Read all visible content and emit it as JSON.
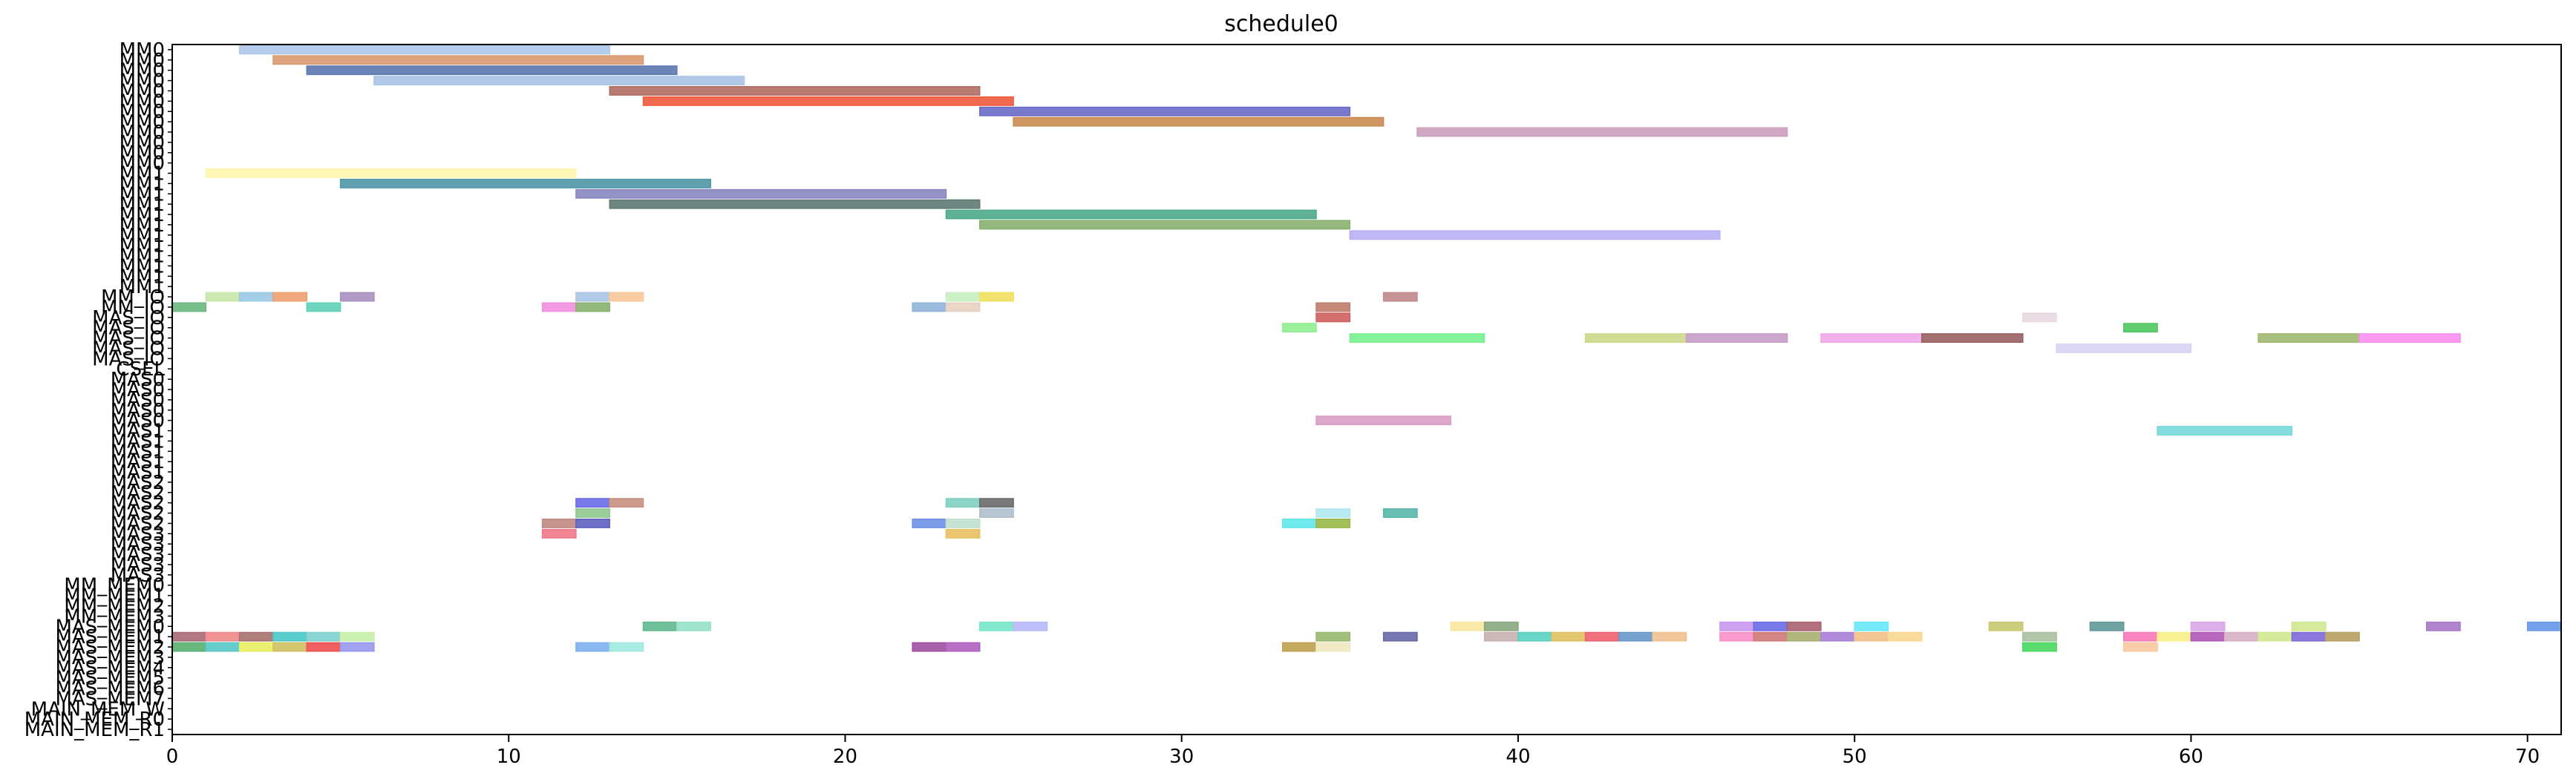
{
  "chart_data": {
    "type": "gantt",
    "title": "schedule0",
    "xlabel": "",
    "ylabel": "",
    "xlim": [
      0,
      71
    ],
    "x_ticks": [
      0,
      10,
      20,
      30,
      40,
      50,
      60,
      70
    ],
    "grid": false,
    "rows": [
      "MM0",
      "MM0",
      "MM0",
      "MM0",
      "MM0",
      "MM0",
      "MM0",
      "MM0",
      "MM0",
      "MM0",
      "MM0",
      "MM0",
      "MM1",
      "MM1",
      "MM1",
      "MM1",
      "MM1",
      "MM1",
      "MM1",
      "MM1",
      "MM1",
      "MM1",
      "MM1",
      "MM1",
      "MM_IO",
      "MM_IO",
      "MAS_IO",
      "MAS_IO",
      "MAS_IO",
      "MAS_IO",
      "MAS_IO",
      "CSEL",
      "MAS0",
      "MAS0",
      "MAS0",
      "MAS0",
      "MAS0",
      "MAS1",
      "MAS1",
      "MAS1",
      "MAS1",
      "MAS1",
      "MAS2",
      "MAS2",
      "MAS2",
      "MAS2",
      "MAS2",
      "MAS3",
      "MAS3",
      "MAS3",
      "MAS3",
      "MAS3",
      "MM_MEM0",
      "MM_MEM1",
      "MM_MEM2",
      "MM_MEM3",
      "MAS_MEM0",
      "MAS_MEM1",
      "MAS_MEM2",
      "MAS_MEM3",
      "MAS_MEM4",
      "MAS_MEM5",
      "MAS_MEM6",
      "MAS_MEM7",
      "MAIN_MEM_W",
      "MAIN_MEM_R0",
      "MAIN_MEM_R1"
    ],
    "tasks": [
      {
        "row": 0,
        "start": 2,
        "end": 13,
        "color": "#aec7e8"
      },
      {
        "row": 1,
        "start": 3,
        "end": 14,
        "color": "#d9996f"
      },
      {
        "row": 2,
        "start": 4,
        "end": 15,
        "color": "#5b78b0"
      },
      {
        "row": 3,
        "start": 6,
        "end": 17,
        "color": "#aac4e6"
      },
      {
        "row": 4,
        "start": 13,
        "end": 24,
        "color": "#b06e62"
      },
      {
        "row": 5,
        "start": 14,
        "end": 25,
        "color": "#f05a3c"
      },
      {
        "row": 6,
        "start": 24,
        "end": 35,
        "color": "#6a6ac8"
      },
      {
        "row": 7,
        "start": 25,
        "end": 36,
        "color": "#c98b52"
      },
      {
        "row": 8,
        "start": 37,
        "end": 48,
        "color": "#caa0bd"
      },
      {
        "row": 12,
        "start": 1,
        "end": 12,
        "color": "#fff6b0"
      },
      {
        "row": 13,
        "start": 5,
        "end": 16,
        "color": "#4f96a6"
      },
      {
        "row": 14,
        "start": 12,
        "end": 23,
        "color": "#8a86c2"
      },
      {
        "row": 15,
        "start": 13,
        "end": 24,
        "color": "#5e7a72"
      },
      {
        "row": 16,
        "start": 23,
        "end": 34,
        "color": "#4eaa8a"
      },
      {
        "row": 17,
        "start": 24,
        "end": 35,
        "color": "#88b070"
      },
      {
        "row": 18,
        "start": 35,
        "end": 46,
        "color": "#b8b0f4"
      },
      {
        "row": 24,
        "start": 1,
        "end": 2,
        "color": "#c8e6a8"
      },
      {
        "row": 24,
        "start": 2,
        "end": 3,
        "color": "#9ac8e6"
      },
      {
        "row": 24,
        "start": 3,
        "end": 4,
        "color": "#eea070"
      },
      {
        "row": 24,
        "start": 5,
        "end": 6,
        "color": "#a890c0"
      },
      {
        "row": 24,
        "start": 12,
        "end": 13,
        "color": "#a8c4e4"
      },
      {
        "row": 24,
        "start": 13,
        "end": 14,
        "color": "#f8c898"
      },
      {
        "row": 24,
        "start": 23,
        "end": 24,
        "color": "#c8f0c0"
      },
      {
        "row": 24,
        "start": 24,
        "end": 25,
        "color": "#f0e060"
      },
      {
        "row": 24,
        "start": 36,
        "end": 37,
        "color": "#c08888"
      },
      {
        "row": 25,
        "start": 0,
        "end": 1,
        "color": "#6ab880"
      },
      {
        "row": 25,
        "start": 4,
        "end": 5,
        "color": "#60d0b8"
      },
      {
        "row": 25,
        "start": 11,
        "end": 12,
        "color": "#f090e0"
      },
      {
        "row": 25,
        "start": 12,
        "end": 13,
        "color": "#88b070"
      },
      {
        "row": 25,
        "start": 22,
        "end": 23,
        "color": "#90b4d8"
      },
      {
        "row": 25,
        "start": 23,
        "end": 24,
        "color": "#e8d0c0"
      },
      {
        "row": 25,
        "start": 34,
        "end": 35,
        "color": "#c07c6c"
      },
      {
        "row": 26,
        "start": 34,
        "end": 35,
        "color": "#d06060"
      },
      {
        "row": 26,
        "start": 55,
        "end": 56,
        "color": "#e8d8e0"
      },
      {
        "row": 27,
        "start": 33,
        "end": 34,
        "color": "#90ee90"
      },
      {
        "row": 27,
        "start": 58,
        "end": 59,
        "color": "#50c860"
      },
      {
        "row": 28,
        "start": 35,
        "end": 39,
        "color": "#78f090"
      },
      {
        "row": 28,
        "start": 42,
        "end": 45,
        "color": "#ccd888"
      },
      {
        "row": 28,
        "start": 45,
        "end": 48,
        "color": "#c89cc8"
      },
      {
        "row": 28,
        "start": 49,
        "end": 52,
        "color": "#f0a8e8"
      },
      {
        "row": 28,
        "start": 52,
        "end": 55,
        "color": "#986060"
      },
      {
        "row": 28,
        "start": 62,
        "end": 65,
        "color": "#a0b870"
      },
      {
        "row": 28,
        "start": 65,
        "end": 68,
        "color": "#f890f0"
      },
      {
        "row": 29,
        "start": 56,
        "end": 60,
        "color": "#d8d4f4"
      },
      {
        "row": 36,
        "start": 34,
        "end": 38,
        "color": "#d8a0c4"
      },
      {
        "row": 37,
        "start": 59,
        "end": 63,
        "color": "#78d8dc"
      },
      {
        "row": 44,
        "start": 12,
        "end": 13,
        "color": "#6a6ae8"
      },
      {
        "row": 44,
        "start": 13,
        "end": 14,
        "color": "#c89080"
      },
      {
        "row": 44,
        "start": 23,
        "end": 24,
        "color": "#80d0c0"
      },
      {
        "row": 44,
        "start": 24,
        "end": 25,
        "color": "#6a6a6a"
      },
      {
        "row": 45,
        "start": 12,
        "end": 13,
        "color": "#90c890"
      },
      {
        "row": 45,
        "start": 24,
        "end": 25,
        "color": "#b0c0cc"
      },
      {
        "row": 45,
        "start": 34,
        "end": 35,
        "color": "#b0e8f0"
      },
      {
        "row": 45,
        "start": 36,
        "end": 37,
        "color": "#58b8a8"
      },
      {
        "row": 46,
        "start": 11,
        "end": 12,
        "color": "#c08880"
      },
      {
        "row": 46,
        "start": 12,
        "end": 13,
        "color": "#6060c0"
      },
      {
        "row": 46,
        "start": 22,
        "end": 23,
        "color": "#7090e8"
      },
      {
        "row": 46,
        "start": 23,
        "end": 24,
        "color": "#c0e0d0"
      },
      {
        "row": 46,
        "start": 33,
        "end": 34,
        "color": "#60e8e8"
      },
      {
        "row": 46,
        "start": 34,
        "end": 35,
        "color": "#98b848"
      },
      {
        "row": 47,
        "start": 11,
        "end": 12,
        "color": "#f07888"
      },
      {
        "row": 47,
        "start": 23,
        "end": 24,
        "color": "#e8c060"
      },
      {
        "row": 56,
        "start": 14,
        "end": 15,
        "color": "#60b890"
      },
      {
        "row": 56,
        "start": 15,
        "end": 16,
        "color": "#98e0c8"
      },
      {
        "row": 56,
        "start": 24,
        "end": 25,
        "color": "#78e8c8"
      },
      {
        "row": 56,
        "start": 25,
        "end": 26,
        "color": "#b8b8f8"
      },
      {
        "row": 56,
        "start": 38,
        "end": 39,
        "color": "#f8e8a0"
      },
      {
        "row": 56,
        "start": 39,
        "end": 40,
        "color": "#88a880"
      },
      {
        "row": 56,
        "start": 46,
        "end": 47,
        "color": "#c898f0"
      },
      {
        "row": 56,
        "start": 47,
        "end": 48,
        "color": "#6a6ae8"
      },
      {
        "row": 56,
        "start": 48,
        "end": 49,
        "color": "#a86070"
      },
      {
        "row": 56,
        "start": 50,
        "end": 51,
        "color": "#68e8f8"
      },
      {
        "row": 56,
        "start": 54,
        "end": 55,
        "color": "#c8c870"
      },
      {
        "row": 56,
        "start": 57,
        "end": 58,
        "color": "#609898"
      },
      {
        "row": 56,
        "start": 60,
        "end": 61,
        "color": "#d8a8e8"
      },
      {
        "row": 56,
        "start": 63,
        "end": 64,
        "color": "#d0e890"
      },
      {
        "row": 56,
        "start": 67,
        "end": 68,
        "color": "#a878c8"
      },
      {
        "row": 56,
        "start": 70,
        "end": 71,
        "color": "#6898e8"
      },
      {
        "row": 57,
        "start": 0,
        "end": 1,
        "color": "#a86878"
      },
      {
        "row": 57,
        "start": 1,
        "end": 2,
        "color": "#f08888"
      },
      {
        "row": 57,
        "start": 2,
        "end": 3,
        "color": "#a87070"
      },
      {
        "row": 57,
        "start": 3,
        "end": 4,
        "color": "#48c8c8"
      },
      {
        "row": 57,
        "start": 4,
        "end": 5,
        "color": "#80d0d0"
      },
      {
        "row": 57,
        "start": 5,
        "end": 6,
        "color": "#c8f0a8"
      },
      {
        "row": 57,
        "start": 34,
        "end": 35,
        "color": "#98b870"
      },
      {
        "row": 57,
        "start": 36,
        "end": 37,
        "color": "#6868a8"
      },
      {
        "row": 57,
        "start": 39,
        "end": 40,
        "color": "#c8b0b0"
      },
      {
        "row": 57,
        "start": 40,
        "end": 41,
        "color": "#58d0c0"
      },
      {
        "row": 57,
        "start": 41,
        "end": 42,
        "color": "#e0c060"
      },
      {
        "row": 57,
        "start": 42,
        "end": 43,
        "color": "#f06070"
      },
      {
        "row": 57,
        "start": 43,
        "end": 44,
        "color": "#6898c8"
      },
      {
        "row": 57,
        "start": 44,
        "end": 45,
        "color": "#f0c090"
      },
      {
        "row": 57,
        "start": 46,
        "end": 47,
        "color": "#f890c8"
      },
      {
        "row": 57,
        "start": 47,
        "end": 48,
        "color": "#d07878"
      },
      {
        "row": 57,
        "start": 48,
        "end": 49,
        "color": "#a8b070"
      },
      {
        "row": 57,
        "start": 49,
        "end": 50,
        "color": "#a880d8"
      },
      {
        "row": 57,
        "start": 50,
        "end": 51,
        "color": "#f0c088"
      },
      {
        "row": 57,
        "start": 51,
        "end": 52,
        "color": "#f8d890"
      },
      {
        "row": 57,
        "start": 55,
        "end": 56,
        "color": "#a8c0a0"
      },
      {
        "row": 57,
        "start": 58,
        "end": 59,
        "color": "#f878b8"
      },
      {
        "row": 57,
        "start": 59,
        "end": 60,
        "color": "#f8f088"
      },
      {
        "row": 57,
        "start": 60,
        "end": 61,
        "color": "#b058b8"
      },
      {
        "row": 57,
        "start": 61,
        "end": 62,
        "color": "#d8b0c8"
      },
      {
        "row": 57,
        "start": 62,
        "end": 63,
        "color": "#d0e890"
      },
      {
        "row": 57,
        "start": 63,
        "end": 64,
        "color": "#8068d8"
      },
      {
        "row": 57,
        "start": 64,
        "end": 65,
        "color": "#b8a060"
      },
      {
        "row": 58,
        "start": 0,
        "end": 1,
        "color": "#58b070"
      },
      {
        "row": 58,
        "start": 1,
        "end": 2,
        "color": "#58c8c8"
      },
      {
        "row": 58,
        "start": 2,
        "end": 3,
        "color": "#e8f060"
      },
      {
        "row": 58,
        "start": 3,
        "end": 4,
        "color": "#d0c060"
      },
      {
        "row": 58,
        "start": 4,
        "end": 5,
        "color": "#f05050"
      },
      {
        "row": 58,
        "start": 5,
        "end": 6,
        "color": "#9898f0"
      },
      {
        "row": 58,
        "start": 12,
        "end": 13,
        "color": "#80b0f0"
      },
      {
        "row": 58,
        "start": 13,
        "end": 14,
        "color": "#a0e8e0"
      },
      {
        "row": 58,
        "start": 22,
        "end": 23,
        "color": "#a050a0"
      },
      {
        "row": 58,
        "start": 23,
        "end": 24,
        "color": "#b060c0"
      },
      {
        "row": 58,
        "start": 33,
        "end": 34,
        "color": "#c0a050"
      },
      {
        "row": 58,
        "start": 34,
        "end": 35,
        "color": "#f0e8c0"
      },
      {
        "row": 58,
        "start": 55,
        "end": 56,
        "color": "#48d860"
      },
      {
        "row": 58,
        "start": 58,
        "end": 59,
        "color": "#f8c8a0"
      }
    ]
  }
}
